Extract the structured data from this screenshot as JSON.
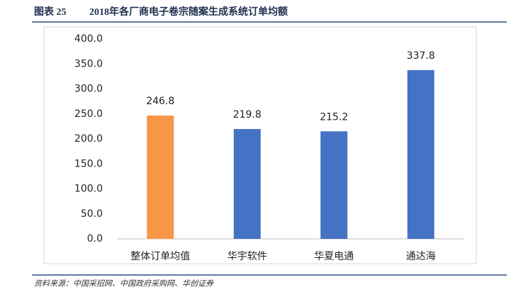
{
  "figure_label": "图表 25",
  "source": "资料来源：中国采招网、中国政府采购网、华创证券",
  "chart_data": {
    "type": "bar",
    "title": "2018年各厂商电子卷宗随案生成系统订单均额",
    "categories": [
      "整体订单均值",
      "华宇软件",
      "华夏电通",
      "通达海"
    ],
    "values": [
      246.8,
      219.8,
      215.2,
      337.8
    ],
    "colors": [
      "#f79646",
      "#4472c4",
      "#4472c4",
      "#4472c4"
    ],
    "ylim": [
      0,
      400
    ],
    "yticks": [
      {
        "value": 0,
        "label": "0.0"
      },
      {
        "value": 50,
        "label": "50.0"
      },
      {
        "value": 100,
        "label": "100.0"
      },
      {
        "value": 150,
        "label": "150.0"
      },
      {
        "value": 200,
        "label": "200.0"
      },
      {
        "value": 250,
        "label": "250.0"
      },
      {
        "value": 300,
        "label": "300.0"
      },
      {
        "value": 350,
        "label": "350.0"
      },
      {
        "value": 400,
        "label": "400.0"
      }
    ],
    "grid": false
  }
}
